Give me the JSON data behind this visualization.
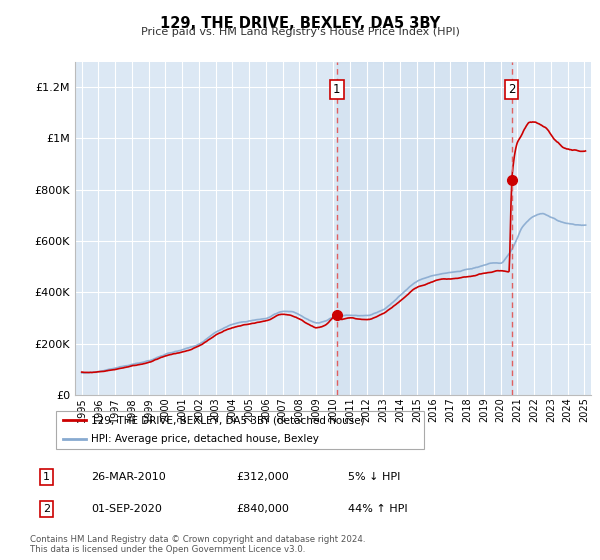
{
  "title": "129, THE DRIVE, BEXLEY, DA5 3BY",
  "subtitle": "Price paid vs. HM Land Registry's House Price Index (HPI)",
  "ylabel_ticks": [
    0,
    200000,
    400000,
    600000,
    800000,
    1000000,
    1200000
  ],
  "ylabel_labels": [
    "£0",
    "£200K",
    "£400K",
    "£600K",
    "£800K",
    "£1M",
    "£1.2M"
  ],
  "xlim": [
    1994.6,
    2025.4
  ],
  "ylim": [
    0,
    1300000
  ],
  "chart_bg_color": "#dce8f4",
  "grid_color": "#ffffff",
  "red_line_color": "#cc0000",
  "blue_line_color": "#88aad0",
  "sale1_x": 2010.23,
  "sale1_y": 312000,
  "sale2_x": 2020.67,
  "sale2_y": 840000,
  "sale1_label": "26-MAR-2010",
  "sale1_price": "£312,000",
  "sale1_note": "5% ↓ HPI",
  "sale2_label": "01-SEP-2020",
  "sale2_price": "£840,000",
  "sale2_note": "44% ↑ HPI",
  "legend1": "129, THE DRIVE, BEXLEY, DA5 3BY (detached house)",
  "legend2": "HPI: Average price, detached house, Bexley",
  "footnote": "Contains HM Land Registry data © Crown copyright and database right 2024.\nThis data is licensed under the Open Government Licence v3.0."
}
